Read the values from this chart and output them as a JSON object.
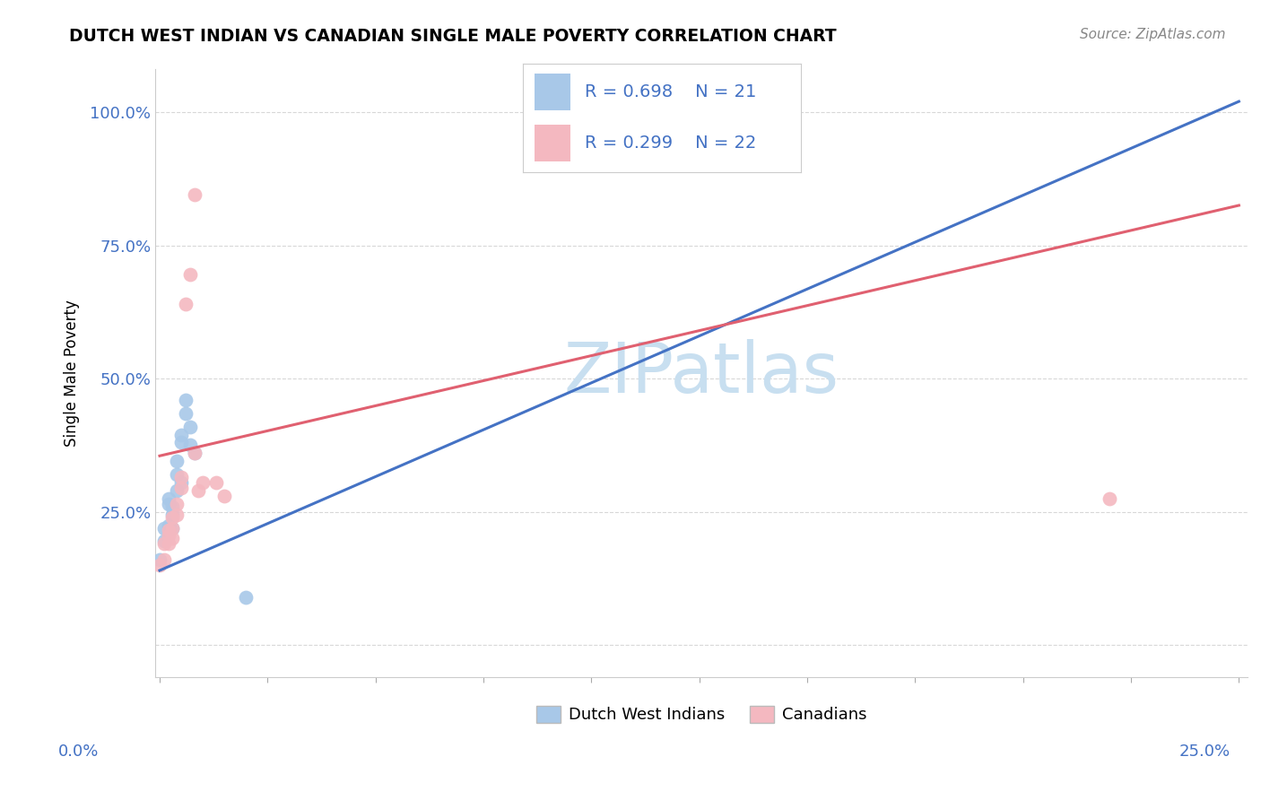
{
  "title": "DUTCH WEST INDIAN VS CANADIAN SINGLE MALE POVERTY CORRELATION CHART",
  "source": "Source: ZipAtlas.com",
  "ylabel": "Single Male Poverty",
  "legend1_R": "R = 0.698",
  "legend1_N": "N = 21",
  "legend2_R": "R = 0.299",
  "legend2_N": "N = 22",
  "legend1_label": "Dutch West Indians",
  "legend2_label": "Canadians",
  "blue_color": "#a8c8e8",
  "pink_color": "#f4b8c0",
  "blue_line_color": "#4472C4",
  "pink_line_color": "#E06070",
  "watermark_color": "#c8dff0",
  "background_color": "#ffffff",
  "grid_color": "#d8d8d8",
  "blue_x": [
    0.0,
    0.001,
    0.002,
    0.002,
    0.002,
    0.003,
    0.003,
    0.003,
    0.004,
    0.004,
    0.004,
    0.005,
    0.005,
    0.006,
    0.006,
    0.007,
    0.007,
    0.008,
    0.008,
    0.009,
    0.02
  ],
  "blue_y": [
    0.155,
    0.195,
    0.215,
    0.235,
    0.275,
    0.2,
    0.24,
    0.265,
    0.295,
    0.335,
    0.345,
    0.305,
    0.385,
    0.44,
    0.465,
    0.38,
    0.415,
    0.355,
    0.375,
    0.485,
    0.085
  ],
  "pink_x": [
    0.0,
    0.001,
    0.001,
    0.002,
    0.002,
    0.003,
    0.003,
    0.003,
    0.004,
    0.004,
    0.004,
    0.005,
    0.006,
    0.007,
    0.008,
    0.008,
    0.009,
    0.01,
    0.01,
    0.013,
    0.015,
    0.22
  ],
  "pink_y": [
    0.155,
    0.165,
    0.195,
    0.195,
    0.21,
    0.205,
    0.225,
    0.245,
    0.25,
    0.265,
    0.3,
    0.32,
    0.645,
    0.7,
    0.37,
    0.85,
    0.295,
    0.31,
    0.33,
    0.31,
    0.285,
    0.275
  ],
  "xlim": [
    0.0,
    0.25
  ],
  "ylim": [
    0.0,
    1.05
  ],
  "ytick_vals": [
    0.0,
    0.25,
    0.5,
    0.75,
    1.0
  ],
  "ytick_labels": [
    "",
    "25.0%",
    "50.0%",
    "75.0%",
    "100.0%"
  ],
  "xtick_left": "0.0%",
  "xtick_right": "25.0%"
}
